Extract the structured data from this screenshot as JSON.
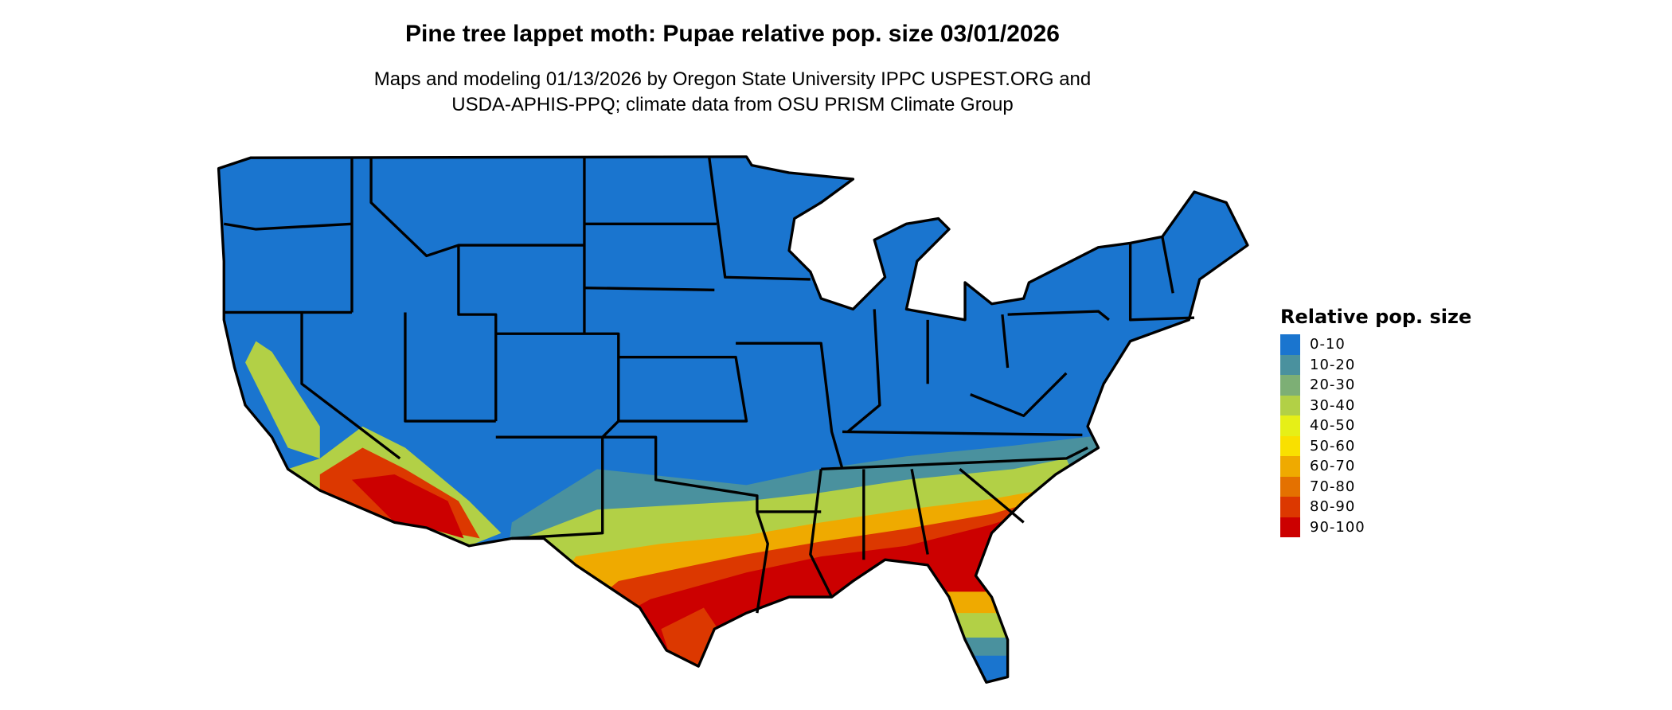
{
  "title": "Pine tree lappet moth: Pupae relative pop. size 03/01/2026",
  "subtitle_line1": "Maps and modeling 01/13/2026 by Oregon State University IPPC USPEST.ORG and",
  "subtitle_line2": "USDA-APHIS-PPQ; climate data from OSU PRISM Climate Group",
  "chart_data": {
    "type": "map",
    "region": "Contiguous United States",
    "legend": {
      "title": "Relative pop. size",
      "placement": "right",
      "classes": [
        {
          "label": "0-10",
          "color": "#1a75cf"
        },
        {
          "label": "10-20",
          "color": "#4a919e"
        },
        {
          "label": "20-30",
          "color": "#7daf75"
        },
        {
          "label": "30-40",
          "color": "#b2d046"
        },
        {
          "label": "40-50",
          "color": "#e6ef17"
        },
        {
          "label": "50-60",
          "color": "#f9e000"
        },
        {
          "label": "60-70",
          "color": "#efaa00"
        },
        {
          "label": "70-80",
          "color": "#e47100"
        },
        {
          "label": "80-90",
          "color": "#dc3800"
        },
        {
          "label": "90-100",
          "color": "#cc0000"
        }
      ]
    }
  }
}
